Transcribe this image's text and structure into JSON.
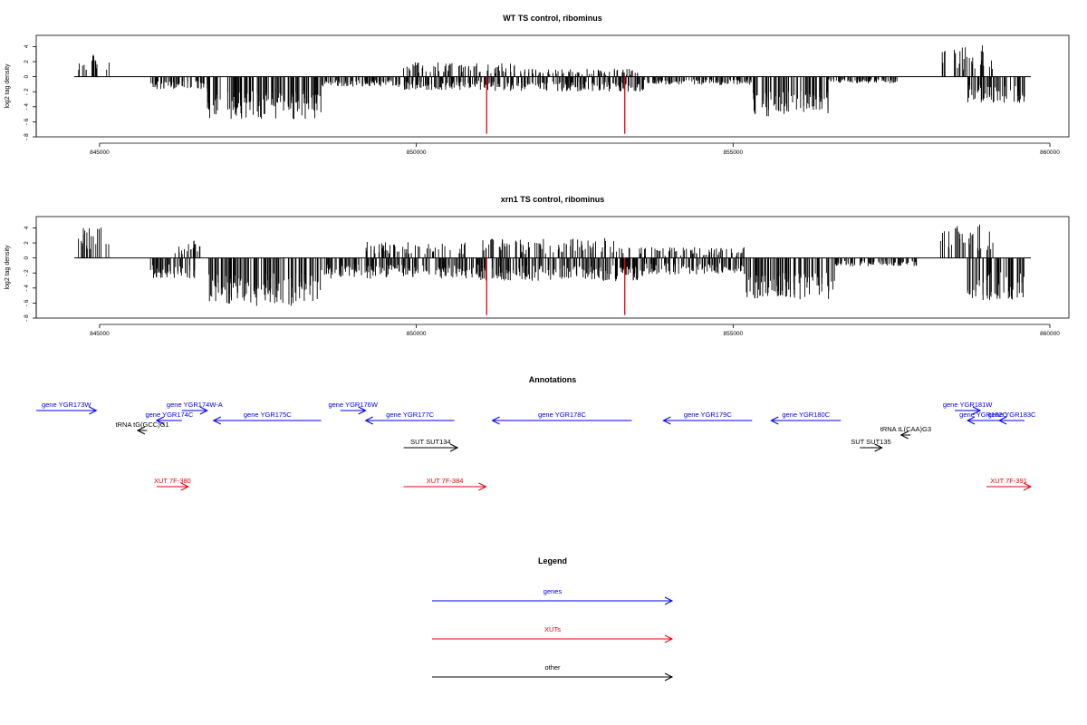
{
  "chart_data": [
    {
      "type": "bar",
      "title": "WT TS control, ribominus",
      "ylabel": "log2 tag density",
      "xlabel": "",
      "x_range": [
        844000,
        860300
      ],
      "ylim": [
        -8,
        5.5
      ],
      "y_ticks": [
        -8,
        -6,
        -4,
        -2,
        0,
        2,
        4
      ],
      "x_ticks": [
        845000,
        850000,
        855000,
        860000
      ],
      "x_tick_labels": [
        "845000",
        "850000",
        "855000",
        "860000"
      ],
      "colors": {
        "bars": "#000000",
        "highlight": "#e8000b"
      },
      "plus_strand_blocks": [
        {
          "from": 844600,
          "to": 845150,
          "height": 2.5
        },
        {
          "from": 849700,
          "to": 851600,
          "height": 1.6
        },
        {
          "from": 851600,
          "to": 853500,
          "height": 0.9
        },
        {
          "from": 858300,
          "to": 859100,
          "height": 3.5
        }
      ],
      "minus_strand_blocks": [
        {
          "from": 845800,
          "to": 846700,
          "depth": 1.5
        },
        {
          "from": 846700,
          "to": 848500,
          "depth": 5.2
        },
        {
          "from": 848500,
          "to": 849700,
          "depth": 1.2
        },
        {
          "from": 849700,
          "to": 851200,
          "depth": 1.6
        },
        {
          "from": 851200,
          "to": 853600,
          "depth": 1.8
        },
        {
          "from": 853600,
          "to": 855300,
          "depth": 1.0
        },
        {
          "from": 855300,
          "to": 856500,
          "depth": 4.8
        },
        {
          "from": 856500,
          "to": 857600,
          "depth": 0.8
        },
        {
          "from": 858700,
          "to": 859600,
          "depth": 3.2
        }
      ],
      "highlights": [
        {
          "x": 851110,
          "value": -7.6
        },
        {
          "x": 853290,
          "value": -7.6
        }
      ]
    },
    {
      "type": "bar",
      "title": "xrn1 TS control, ribominus",
      "ylabel": "log2 tag density",
      "xlabel": "",
      "x_range": [
        844000,
        860300
      ],
      "ylim": [
        -8,
        5.5
      ],
      "y_ticks": [
        -8,
        -6,
        -4,
        -2,
        0,
        2,
        4
      ],
      "x_ticks": [
        845000,
        850000,
        855000,
        860000
      ],
      "x_tick_labels": [
        "845000",
        "850000",
        "855000",
        "860000"
      ],
      "colors": {
        "bars": "#000000",
        "highlight": "#e8000b"
      },
      "plus_strand_blocks": [
        {
          "from": 844600,
          "to": 845150,
          "height": 3.5
        },
        {
          "from": 846100,
          "to": 846600,
          "height": 2.0
        },
        {
          "from": 849200,
          "to": 850800,
          "height": 1.8
        },
        {
          "from": 851000,
          "to": 853500,
          "height": 2.2
        },
        {
          "from": 853500,
          "to": 855200,
          "height": 1.2
        },
        {
          "from": 858200,
          "to": 859100,
          "height": 3.8
        }
      ],
      "minus_strand_blocks": [
        {
          "from": 845800,
          "to": 846500,
          "depth": 2.5
        },
        {
          "from": 846700,
          "to": 848500,
          "depth": 5.8
        },
        {
          "from": 848500,
          "to": 851000,
          "depth": 2.5
        },
        {
          "from": 851000,
          "to": 853600,
          "depth": 2.8
        },
        {
          "from": 853600,
          "to": 855200,
          "depth": 2.0
        },
        {
          "from": 855200,
          "to": 856600,
          "depth": 5.0
        },
        {
          "from": 856600,
          "to": 857900,
          "depth": 1.0
        },
        {
          "from": 858700,
          "to": 859600,
          "depth": 5.2
        }
      ],
      "highlights": [
        {
          "x": 851110,
          "value": -7.6
        },
        {
          "x": 853290,
          "value": -7.6
        }
      ]
    }
  ],
  "annotations": {
    "title": "Annotations",
    "colors": {
      "gene": "#0000ee",
      "xut": "#e8000b",
      "other": "#000000"
    },
    "features": [
      {
        "label": "gene YGR173W",
        "kind": "gene",
        "strand": "+",
        "from": 844000,
        "to": 844950,
        "row": 0
      },
      {
        "label": "gene YGR174C",
        "kind": "gene",
        "strand": "-",
        "from": 845900,
        "to": 846300,
        "row": 1
      },
      {
        "label": "gene YGR174W-A",
        "kind": "gene",
        "strand": "+",
        "from": 846300,
        "to": 846700,
        "row": 0
      },
      {
        "label": "gene YGR175C",
        "kind": "gene",
        "strand": "-",
        "from": 846800,
        "to": 848500,
        "row": 1
      },
      {
        "label": "gene YGR176W",
        "kind": "gene",
        "strand": "+",
        "from": 848800,
        "to": 849200,
        "row": 0
      },
      {
        "label": "gene YGR177C",
        "kind": "gene",
        "strand": "-",
        "from": 849200,
        "to": 850600,
        "row": 1
      },
      {
        "label": "gene YGR178C",
        "kind": "gene",
        "strand": "-",
        "from": 851200,
        "to": 853400,
        "row": 1
      },
      {
        "label": "gene YGR179C",
        "kind": "gene",
        "strand": "-",
        "from": 853900,
        "to": 855300,
        "row": 1
      },
      {
        "label": "gene YGR180C",
        "kind": "gene",
        "strand": "-",
        "from": 855600,
        "to": 856700,
        "row": 1
      },
      {
        "label": "gene YGR181W",
        "kind": "gene",
        "strand": "+",
        "from": 858500,
        "to": 858900,
        "row": 0
      },
      {
        "label": "gene YGR182C",
        "kind": "gene",
        "strand": "-",
        "from": 858700,
        "to": 859200,
        "row": 1
      },
      {
        "label": "gene YGR183C",
        "kind": "gene",
        "strand": "-",
        "from": 859200,
        "to": 859600,
        "row": 1
      },
      {
        "label": "tRNA tG(GCC)G1",
        "kind": "other",
        "strand": "-",
        "from": 845600,
        "to": 845750,
        "row": 2
      },
      {
        "label": "tRNA tL(CAA)G3",
        "kind": "other",
        "strand": "-",
        "from": 857650,
        "to": 857800,
        "row": 3
      },
      {
        "label": "SUT SUT134",
        "kind": "other",
        "strand": "+",
        "from": 849800,
        "to": 850650,
        "row": 4
      },
      {
        "label": "SUT SUT135",
        "kind": "other",
        "strand": "+",
        "from": 857000,
        "to": 857350,
        "row": 5
      },
      {
        "label": "XUT 7F-380",
        "kind": "xut",
        "strand": "+",
        "from": 845900,
        "to": 846400,
        "row": 6
      },
      {
        "label": "XUT 7F-384",
        "kind": "xut",
        "strand": "+",
        "from": 849800,
        "to": 851100,
        "row": 6
      },
      {
        "label": "XUT 7F-391",
        "kind": "xut",
        "strand": "+",
        "from": 859000,
        "to": 859700,
        "row": 6
      }
    ]
  },
  "legend": {
    "title": "Legend",
    "items": [
      {
        "label": "genes",
        "color": "#0000ee"
      },
      {
        "label": "XUTs",
        "color": "#e8000b"
      },
      {
        "label": "other",
        "color": "#000000"
      }
    ]
  }
}
